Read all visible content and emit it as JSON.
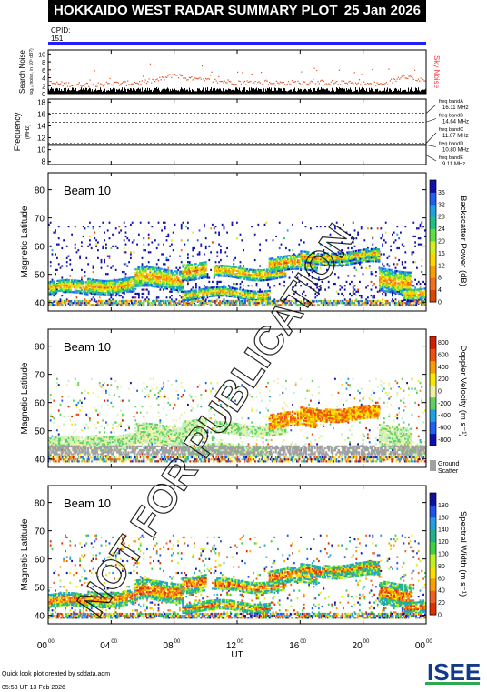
{
  "header": {
    "title": "HOKKAIDO WEST RADAR SUMMARY PLOT",
    "date": "25 Jan 2026"
  },
  "cpid": {
    "label": "CPID:",
    "value": "151",
    "bar_color": "#2020ff"
  },
  "watermark": "NOT FOR PUBLICATION",
  "footer": {
    "line1": "Quick look plot created by sddata.adm",
    "line2": "05:58 UT 13 Feb 2026"
  },
  "logo_text": "ISEE",
  "colors": {
    "noise": "#e05020",
    "sky_noise_label": "#ff3b3b",
    "ground_scatter": "#a0a0a0"
  },
  "chart_data": [
    {
      "id": "noise",
      "type": "line",
      "ylabel": "Search Noise",
      "ylabel2": "log₁₀(noise, in 10³ dB?)",
      "legend": "Sky Noise",
      "yticks": [
        0,
        2,
        4,
        6,
        8,
        10
      ],
      "ylim": [
        0,
        11
      ],
      "x": [
        0,
        1,
        2,
        3,
        4,
        5,
        6,
        7,
        7.5,
        8,
        8.5,
        9,
        10,
        11,
        12,
        13,
        14,
        15,
        16,
        17,
        18,
        19,
        20,
        21,
        22,
        22.5,
        23,
        23.5,
        24
      ],
      "values": [
        2.8,
        2.5,
        2.4,
        2.5,
        2.6,
        2.7,
        3.0,
        3.6,
        4.2,
        5.0,
        4.3,
        3.8,
        3.5,
        3.2,
        3.0,
        2.9,
        2.8,
        2.8,
        2.9,
        3.0,
        2.9,
        2.7,
        2.6,
        2.5,
        3.5,
        4.8,
        4.2,
        3.6,
        3.2
      ]
    },
    {
      "id": "frequency",
      "type": "line",
      "ylabel": "Frequency",
      "yunit": "(MHz)",
      "yticks": [
        8,
        10,
        12,
        14,
        16,
        18
      ],
      "ylim": [
        7.5,
        18.5
      ],
      "constant_value": 10.8,
      "bands": [
        {
          "name": "freq bandA",
          "freq": "16.11 MHz",
          "value": 16.11
        },
        {
          "name": "freq bandB",
          "freq": "14.64 MHz",
          "value": 14.64
        },
        {
          "name": "freq bandC",
          "freq": "11.07 MHz",
          "value": 11.07
        },
        {
          "name": "freq bandD",
          "freq": "10.80 MHz",
          "value": 10.8
        },
        {
          "name": "freq bandE",
          "freq": "9.11 MHz",
          "value": 9.11
        }
      ]
    },
    {
      "id": "power",
      "type": "heatmap",
      "beam": "Beam 10",
      "ylabel": "Magnetic Latitude",
      "yticks": [
        40,
        50,
        60,
        70,
        80
      ],
      "ylim": [
        37,
        86
      ],
      "colorbar_label": "Backscatter Power (dB)",
      "colorbar_ticks": [
        0,
        4,
        8,
        12,
        16,
        20,
        24,
        28,
        32,
        36
      ]
    },
    {
      "id": "velocity",
      "type": "heatmap",
      "beam": "Beam 10",
      "ylabel": "Magnetic Latitude",
      "yticks": [
        40,
        50,
        60,
        70,
        80
      ],
      "ylim": [
        37,
        86
      ],
      "colorbar_label": "Doppler Velocity (m s⁻¹)",
      "colorbar_ticks": [
        -800,
        -600,
        -400,
        -200,
        0,
        200,
        400,
        600,
        800
      ],
      "ground_label": "Ground",
      "ground_label2": "Scatter"
    },
    {
      "id": "width",
      "type": "heatmap",
      "beam": "Beam 10",
      "ylabel": "Magnetic Latitude",
      "yticks": [
        40,
        50,
        60,
        70,
        80
      ],
      "ylim": [
        37,
        86
      ],
      "colorbar_label": "Spectral Width (m s⁻¹)",
      "colorbar_ticks": [
        0,
        20,
        40,
        60,
        80,
        100,
        120,
        140,
        160,
        180
      ]
    }
  ],
  "time_axis": {
    "xlabel": "UT",
    "xlim": [
      0,
      24
    ],
    "ticks": [
      {
        "v": 0,
        "h": "00",
        "m": "00"
      },
      {
        "v": 4,
        "h": "04",
        "m": "00"
      },
      {
        "v": 8,
        "h": "08",
        "m": "00"
      },
      {
        "v": 12,
        "h": "12",
        "m": "00"
      },
      {
        "v": 16,
        "h": "16",
        "m": "00"
      },
      {
        "v": 20,
        "h": "20",
        "m": "00"
      },
      {
        "v": 24,
        "h": "00",
        "m": "00"
      }
    ]
  }
}
